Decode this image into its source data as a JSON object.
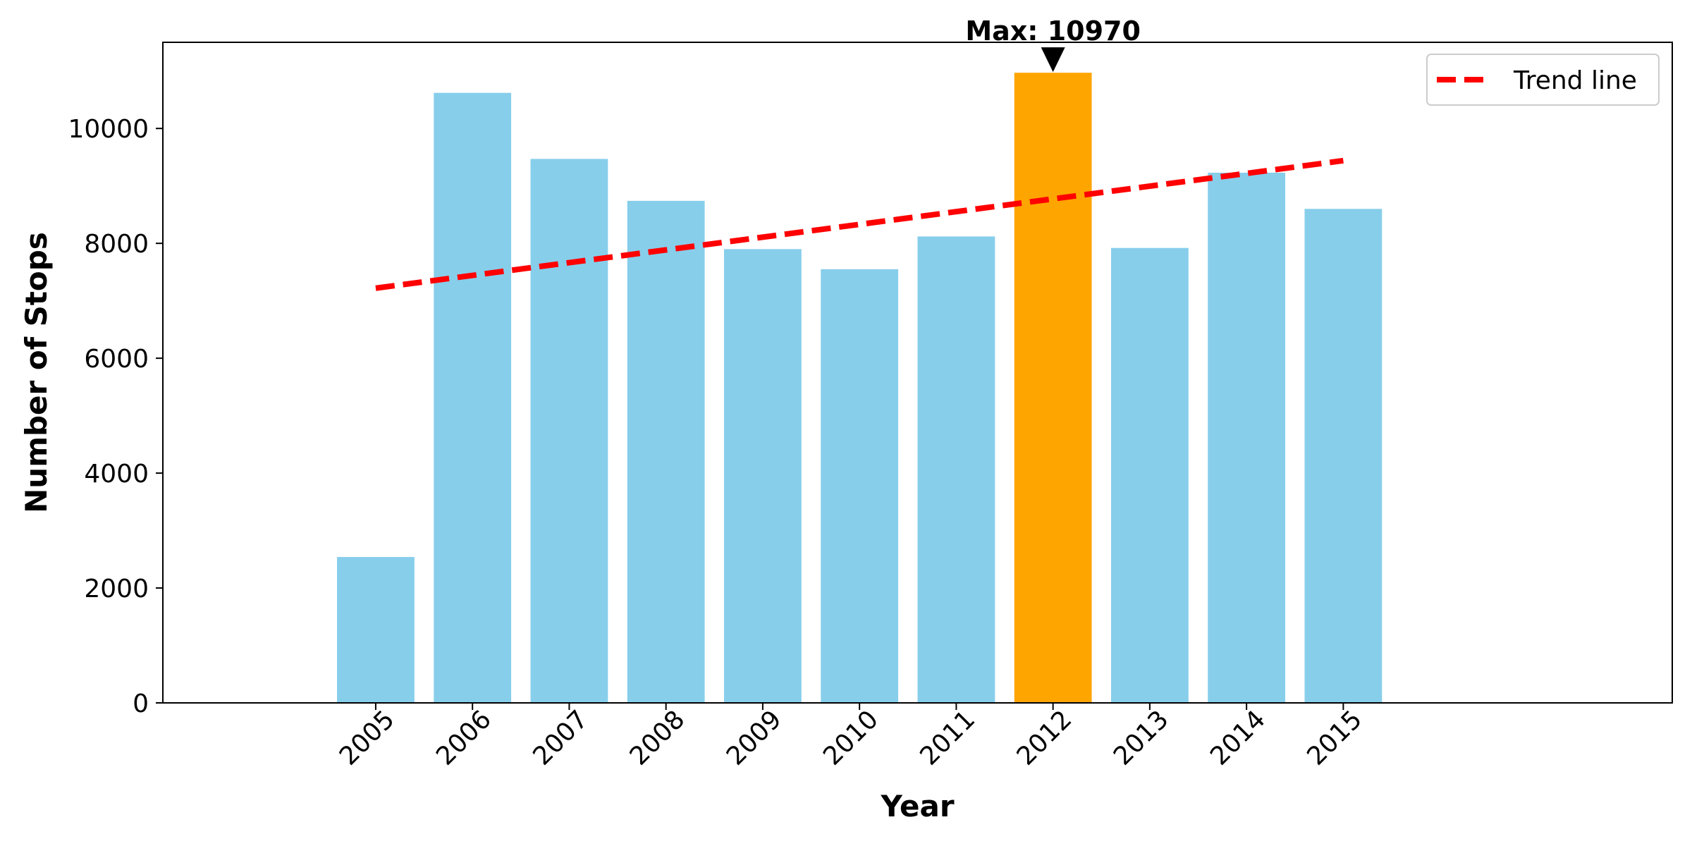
{
  "chart_data": {
    "type": "bar",
    "categories": [
      "2005",
      "2006",
      "2007",
      "2008",
      "2009",
      "2010",
      "2011",
      "2012",
      "2013",
      "2014",
      "2015"
    ],
    "values": [
      2540,
      10620,
      9470,
      8740,
      7900,
      7550,
      8120,
      10970,
      7920,
      9230,
      8600
    ],
    "highlight_index": 7,
    "highlight_label": "Max: 10970",
    "title": "",
    "xlabel": "Year",
    "ylabel": "Number of Stops",
    "ylim": [
      0,
      11500
    ],
    "yticks": [
      0,
      2000,
      4000,
      6000,
      8000,
      10000
    ],
    "ytick_labels": [
      "0",
      "2000",
      "4000",
      "6000",
      "8000",
      "10000"
    ],
    "grid": false,
    "legend": {
      "placement": "top-right",
      "entries": [
        {
          "label": "Trend line",
          "style": "dashed",
          "color": "#ff0000"
        }
      ]
    },
    "trend_line": {
      "name": "Trend line",
      "start": {
        "x": "2005",
        "y": 7220
      },
      "end": {
        "x": "2015",
        "y": 9440
      }
    },
    "colors": {
      "bar": "#87ceeb",
      "highlight_bar": "#ffa500",
      "trend_line": "#ff0000",
      "annotation_arrow": "#000000"
    }
  }
}
